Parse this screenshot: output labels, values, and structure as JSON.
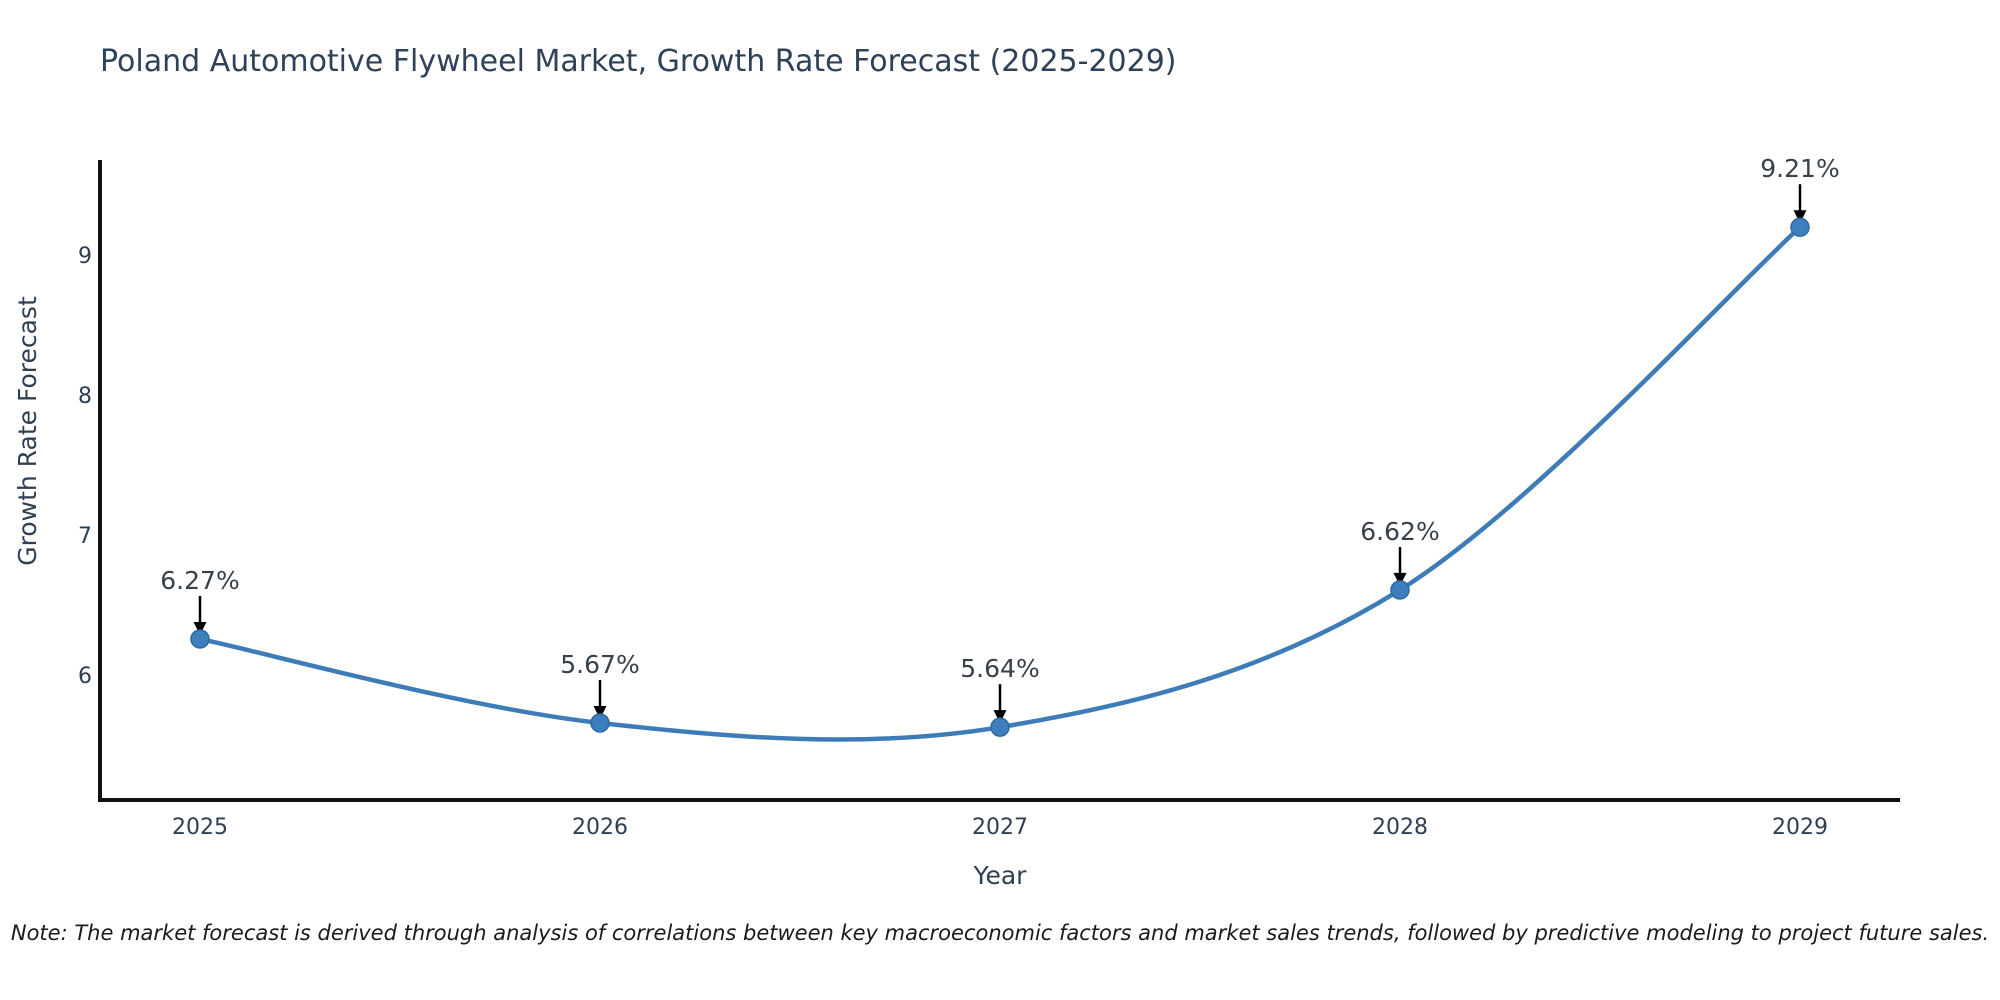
{
  "chart_data": {
    "type": "line",
    "title": "Poland Automotive Flywheel Market, Growth Rate Forecast (2025-2029)",
    "xlabel": "Year",
    "ylabel": "Growth Rate Forecast",
    "x": [
      2025,
      2026,
      2027,
      2028,
      2029
    ],
    "series": [
      {
        "name": "Growth Rate Forecast",
        "values": [
          6.27,
          5.67,
          5.64,
          6.62,
          9.21
        ]
      }
    ],
    "point_labels": [
      "6.27%",
      "5.67%",
      "5.64%",
      "6.62%",
      "9.21%"
    ],
    "xticks": [
      "2025",
      "2026",
      "2027",
      "2028",
      "2029"
    ],
    "yticks": [
      6,
      7,
      8,
      9
    ],
    "xlim": [
      2024.75,
      2029.25
    ],
    "ylim": [
      5.12,
      9.69
    ],
    "grid": false,
    "legend_position": "none",
    "line_shape": "spline",
    "annotation_style": "black-arrow-pointing-down-to-point",
    "colors": {
      "line": "#3e7cb8",
      "marker_fill": "#3d7ebd",
      "marker_edge": "#2c6aa0",
      "axis": "#111111",
      "arrow": "#000000",
      "title_text": "#2e4157",
      "tick_text": "#2f3f53",
      "annotation_text": "#38404a",
      "note_text": "#1a1a1a",
      "background": "#ffffff"
    }
  },
  "note": "Note: The market forecast is derived through analysis of correlations between key macroeconomic factors and market sales trends, followed by predictive modeling to project future sales."
}
